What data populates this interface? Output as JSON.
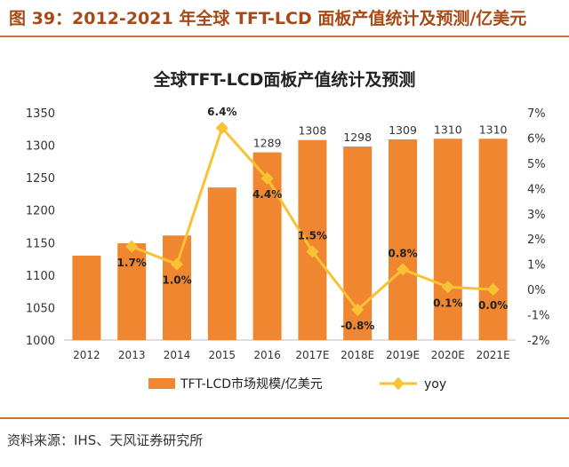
{
  "figure": {
    "caption": "图 39：2012-2021 年全球 TFT-LCD 面板产值统计及预测/亿美元",
    "source": "资料来源：IHS、天风证券研究所"
  },
  "colors": {
    "bar": "#f0862f",
    "line": "#f7c234",
    "accent": "#a84a16"
  },
  "chart_data": {
    "type": "bar+line",
    "title": "全球TFT-LCD面板产值统计及预测",
    "categories": [
      "2012",
      "2013",
      "2014",
      "2015",
      "2016",
      "2017E",
      "2018E",
      "2019E",
      "2020E",
      "2021E"
    ],
    "series": [
      {
        "name": "TFT-LCD市场规模/亿美元",
        "type": "bar",
        "axis": "left",
        "values": [
          1130,
          1149,
          1161,
          1235,
          1289,
          1308,
          1298,
          1309,
          1310,
          1310
        ],
        "labels": [
          null,
          null,
          null,
          null,
          "1289",
          "1308",
          "1298",
          "1309",
          "1310",
          "1310"
        ]
      },
      {
        "name": "yoy",
        "type": "line",
        "axis": "right",
        "values": [
          null,
          1.7,
          1.0,
          6.4,
          4.4,
          1.5,
          -0.8,
          0.8,
          0.1,
          0.0
        ],
        "labels": [
          null,
          "1.7%",
          "1.0%",
          "6.4%",
          "4.4%",
          "1.5%",
          "-0.8%",
          "0.8%",
          "0.1%",
          "0.0%"
        ]
      }
    ],
    "y_left": {
      "lim": [
        1000,
        1350
      ],
      "ticks": [
        "1000",
        "1050",
        "1100",
        "1150",
        "1200",
        "1250",
        "1300",
        "1350"
      ]
    },
    "y_right": {
      "lim": [
        -2,
        7
      ],
      "ticks": [
        "-2%",
        "-1%",
        "0%",
        "1%",
        "2%",
        "3%",
        "4%",
        "5%",
        "6%",
        "7%"
      ]
    },
    "legend": {
      "position": "bottom"
    }
  }
}
